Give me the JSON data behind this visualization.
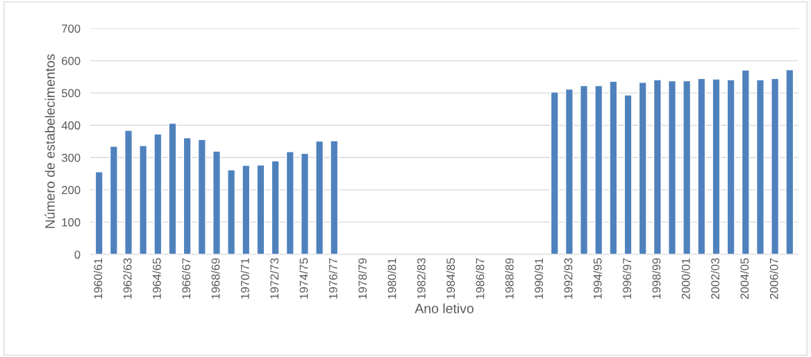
{
  "chart_data": {
    "type": "bar",
    "xlabel": "Ano letivo",
    "ylabel": "Número de estabelecimentos",
    "categories": [
      "1960/61",
      null,
      "1962/63",
      null,
      "1964/65",
      null,
      "1966/67",
      null,
      "1968/69",
      null,
      "1970/71",
      null,
      "1972/73",
      null,
      "1974/75",
      null,
      "1976/77",
      null,
      "1978/79",
      null,
      "1980/81",
      null,
      "1982/83",
      null,
      "1984/85",
      null,
      "1986/87",
      null,
      "1988/89",
      null,
      "1990/91",
      null,
      "1992/93",
      null,
      "1994/95",
      null,
      "1996/97",
      null,
      "1998/99",
      null,
      "2000/01",
      null,
      "2002/03",
      null,
      "2004/05",
      null,
      "2006/07",
      null
    ],
    "values": [
      256,
      335,
      384,
      337,
      373,
      406,
      361,
      356,
      320,
      262,
      276,
      277,
      290,
      318,
      313,
      351,
      352,
      null,
      null,
      null,
      null,
      null,
      null,
      null,
      null,
      null,
      null,
      null,
      null,
      null,
      null,
      503,
      512,
      523,
      523,
      536,
      494,
      533,
      541,
      538,
      538,
      545,
      543,
      541,
      571,
      541,
      545,
      572
    ],
    "color": "#4f81bd",
    "ylim": [
      0,
      700
    ],
    "yticks": [
      0,
      100,
      200,
      300,
      400,
      500,
      600,
      700
    ],
    "grid": "y"
  }
}
